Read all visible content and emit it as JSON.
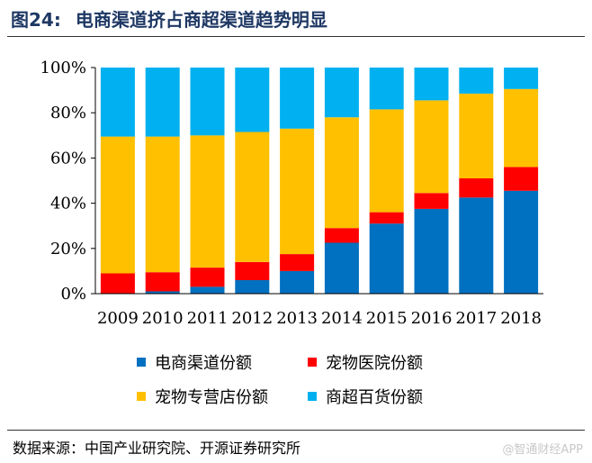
{
  "figure": {
    "number": "图24:",
    "title": "电商渠道挤占商超渠道趋势明显"
  },
  "chart_data": {
    "type": "bar",
    "stacked": true,
    "title": "电商渠道挤占商超渠道趋势明显",
    "categories": [
      "2009",
      "2010",
      "2011",
      "2012",
      "2013",
      "2014",
      "2015",
      "2016",
      "2017",
      "2018"
    ],
    "series": [
      {
        "name": "电商渠道份额",
        "color": "#0070c0",
        "values": [
          0,
          1,
          3,
          6,
          10,
          22.5,
          31,
          37.5,
          42.5,
          45.5
        ]
      },
      {
        "name": "宠物医院份额",
        "color": "#ff0000",
        "values": [
          9,
          8.5,
          8.5,
          8,
          7.5,
          6.5,
          5,
          7,
          8.5,
          10.5
        ]
      },
      {
        "name": "宠物专营店份额",
        "color": "#ffc000",
        "values": [
          60.5,
          60,
          58.5,
          57.5,
          55.5,
          49,
          45.5,
          41,
          37.5,
          34.5
        ]
      },
      {
        "name": "商超百货份额",
        "color": "#00b0f0",
        "values": [
          30.5,
          30.5,
          30,
          28.5,
          27,
          22,
          18.5,
          14.5,
          11.5,
          9.5
        ]
      }
    ],
    "ylim": [
      0,
      100
    ],
    "yticks": [
      "0%",
      "20%",
      "40%",
      "60%",
      "80%",
      "100%"
    ],
    "xlabel": "",
    "ylabel": "",
    "legend_position": "bottom"
  },
  "source_text": "数据来源：中国产业研究院、开源证券研究所",
  "watermark": "@智通财经APP"
}
